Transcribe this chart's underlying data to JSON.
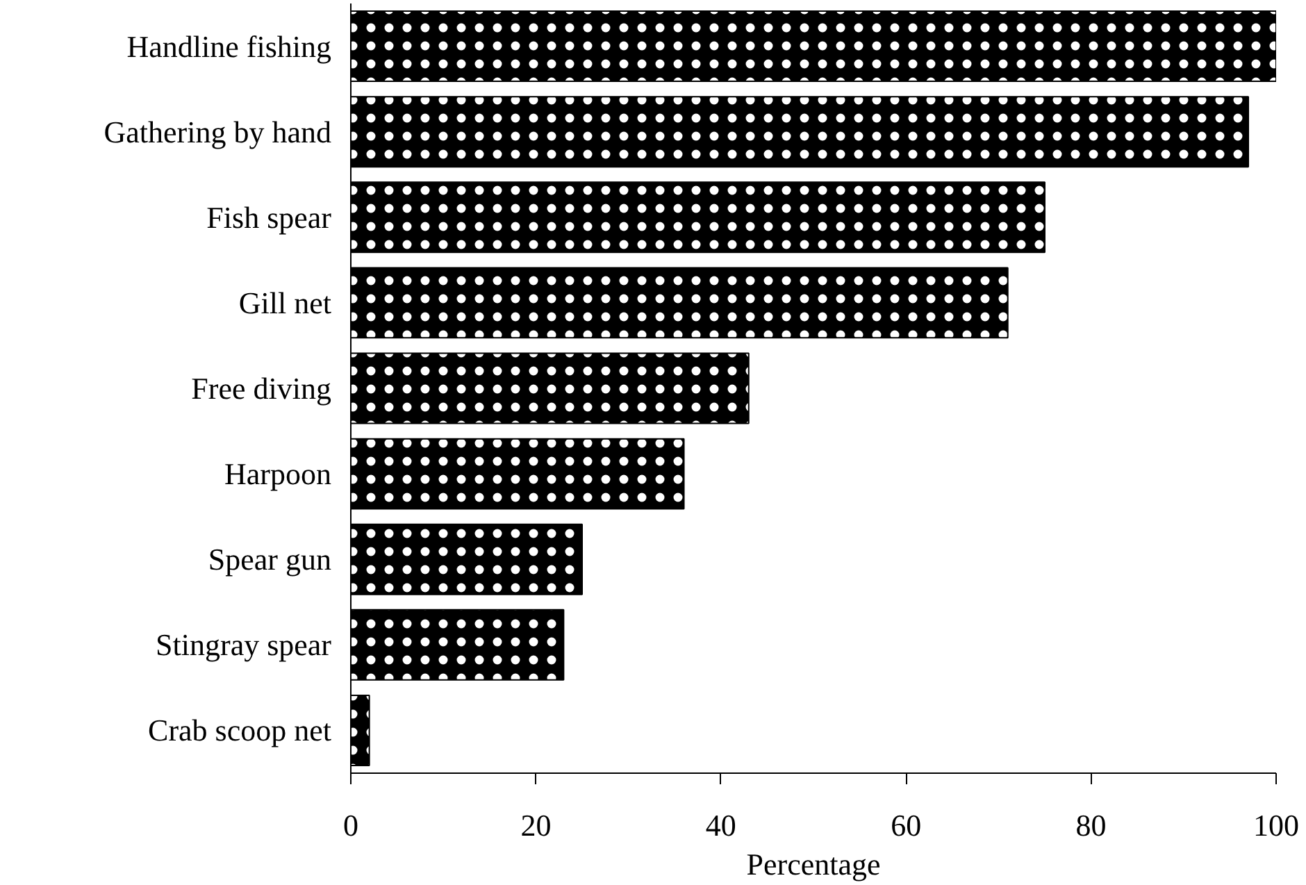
{
  "chart_data": {
    "type": "bar",
    "orientation": "horizontal",
    "xlabel": "Percentage",
    "categories": [
      "Handline fishing",
      "Gathering by hand",
      "Fish spear",
      "Gill net",
      "Free diving",
      "Harpoon",
      "Spear gun",
      "Stingray spear",
      "Crab scoop net"
    ],
    "values": [
      100,
      97,
      75,
      71,
      43,
      36,
      25,
      23,
      2
    ],
    "color": "#000000",
    "xlim": [
      0,
      100
    ],
    "xticks": [
      0,
      20,
      40,
      60,
      80,
      100
    ],
    "grid": false
  }
}
